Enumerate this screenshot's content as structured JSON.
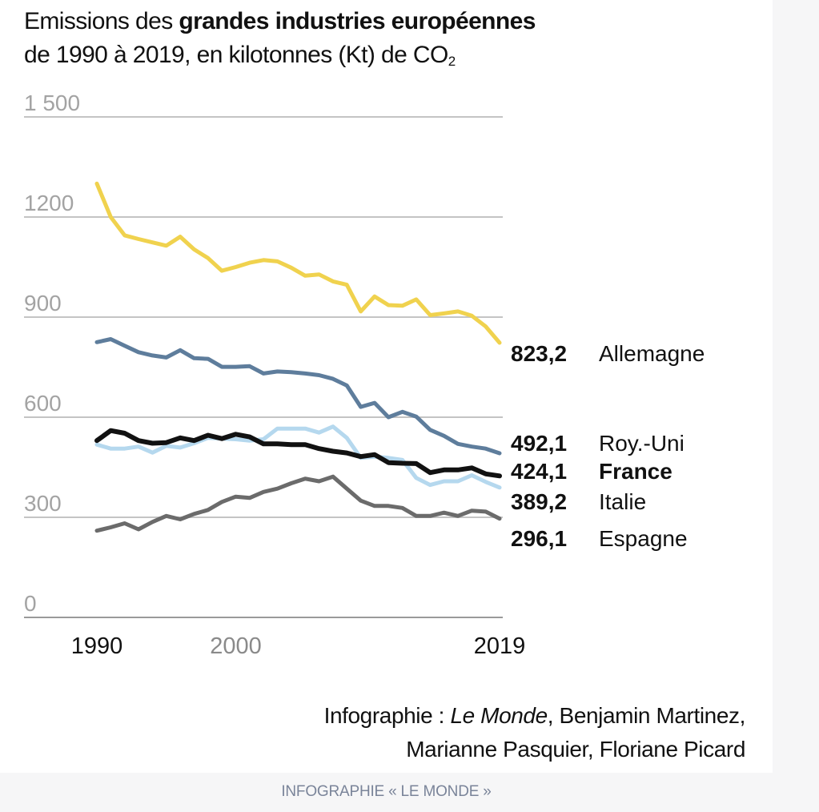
{
  "title": {
    "prefix": "Emissions des ",
    "bold": "grandes industries européennes",
    "line2": "de 1990 à 2019, en kilotonnes (Kt) de CO",
    "line2_sub": "2"
  },
  "credit": {
    "prefix": "Infographie : ",
    "italic": "Le Monde",
    "rest": ", Benjamin Martinez,",
    "line2": "Marianne Pasquier, Floriane Picard"
  },
  "footer": "INFOGRAPHIE « LE MONDE »",
  "chart_data": {
    "type": "line",
    "title": "Emissions des grandes industries européennes de 1990 à 2019, en kilotonnes (Kt) de CO2",
    "ylim": [
      0,
      1500
    ],
    "yticks": [
      0,
      300,
      600,
      900,
      1200,
      1500
    ],
    "ytick_labels": [
      "0",
      "300",
      "600",
      "900",
      "1200",
      "1 500"
    ],
    "xlim": [
      1990,
      2019
    ],
    "xtick_labels": [
      {
        "year": 1990,
        "label": "1990",
        "color": "#111111"
      },
      {
        "year": 2000,
        "label": "2000",
        "color": "#8a8a8a"
      },
      {
        "year": 2019,
        "label": "2019",
        "color": "#111111"
      }
    ],
    "grid": true,
    "x": [
      1990,
      1991,
      1992,
      1993,
      1994,
      1995,
      1996,
      1997,
      1998,
      1999,
      2000,
      2001,
      2002,
      2003,
      2004,
      2005,
      2006,
      2007,
      2008,
      2009,
      2010,
      2011,
      2012,
      2013,
      2014,
      2015,
      2016,
      2017,
      2018,
      2019
    ],
    "series": [
      {
        "name": "Allemagne",
        "end_label": "823,2",
        "color": "#f0d24e",
        "bold": false,
        "values": [
          1300,
          1200,
          1145,
          1134,
          1124,
          1114,
          1141,
          1103,
          1077,
          1039,
          1050,
          1063,
          1071,
          1067,
          1048,
          1024,
          1028,
          1007,
          997,
          917,
          962,
          936,
          934,
          953,
          906,
          911,
          917,
          904,
          872,
          823.2
        ]
      },
      {
        "name": "Roy.-Uni",
        "end_label": "492,1",
        "color": "#5e7d9c",
        "bold": false,
        "values": [
          825,
          834,
          814,
          795,
          785,
          779,
          801,
          777,
          775,
          751,
          751,
          753,
          731,
          737,
          735,
          731,
          726,
          715,
          695,
          631,
          643,
          600,
          616,
          602,
          562,
          544,
          520,
          512,
          506,
          492.1
        ]
      },
      {
        "name": "Italie",
        "end_label": "389,2",
        "color": "#b5d8ee",
        "bold": false,
        "values": [
          518,
          506,
          506,
          512,
          494,
          514,
          509,
          522,
          538,
          536,
          534,
          530,
          534,
          566,
          566,
          566,
          554,
          572,
          538,
          478,
          482,
          478,
          472,
          418,
          397,
          408,
          408,
          426,
          406,
          389.2
        ]
      },
      {
        "name": "Espagne",
        "end_label": "296,1",
        "color": "#6b6b6b",
        "bold": false,
        "values": [
          260,
          270,
          282,
          264,
          286,
          304,
          294,
          310,
          322,
          346,
          362,
          358,
          376,
          386,
          402,
          416,
          408,
          422,
          386,
          350,
          334,
          334,
          328,
          304,
          304,
          314,
          304,
          320,
          317,
          296.1
        ]
      },
      {
        "name": "France",
        "end_label": "424,1",
        "color": "#111111",
        "bold": true,
        "values": [
          530,
          560,
          552,
          530,
          522,
          524,
          538,
          530,
          546,
          536,
          549,
          541,
          520,
          520,
          518,
          518,
          506,
          498,
          493,
          482,
          488,
          464,
          462,
          461,
          434,
          442,
          442,
          448,
          430,
          424.1
        ]
      }
    ]
  }
}
